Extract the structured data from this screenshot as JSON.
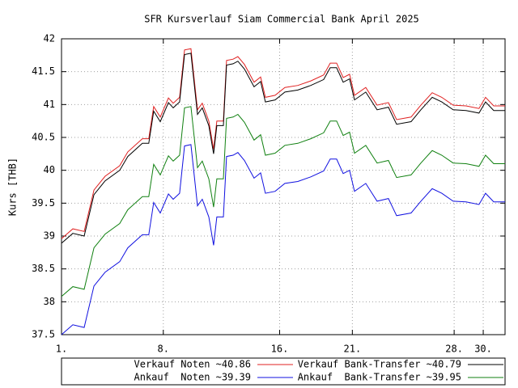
{
  "chart_data": {
    "type": "line",
    "title": "SFR Kursverlauf Siam Commercial Bank April 2025",
    "y_label": "Kurs [THB]",
    "xlim": [
      1,
      31.5
    ],
    "xticks": [
      {
        "value": 1,
        "label": "1."
      },
      {
        "value": 8,
        "label": "8."
      },
      {
        "value": 16,
        "label": "16."
      },
      {
        "value": 21,
        "label": "21."
      },
      {
        "value": 28,
        "label": "28."
      },
      {
        "value": 30,
        "label": "30."
      }
    ],
    "ylim": [
      37.5,
      42
    ],
    "yticks": [
      37.5,
      38,
      38.5,
      39,
      39.5,
      40,
      40.5,
      41,
      41.5,
      42
    ],
    "grid": true,
    "legend": "bottom",
    "x": [
      1,
      1.78,
      2.56,
      3.23,
      4.0,
      5.0,
      5.56,
      6.56,
      7.0,
      7.34,
      7.79,
      8.35,
      8.68,
      9.12,
      9.46,
      9.9,
      10.35,
      10.68,
      11.13,
      11.46,
      11.68,
      12.13,
      12.35,
      12.8,
      13.13,
      13.58,
      14.24,
      14.69,
      15.02,
      15.69,
      16.36,
      17.25,
      18.14,
      19.03,
      19.48,
      19.92,
      20.37,
      20.81,
      21.15,
      21.92,
      22.7,
      23.48,
      24.04,
      25.04,
      25.71,
      26.49,
      27.15,
      27.93,
      28.82,
      29.71,
      30.16,
      30.72,
      31.5
    ],
    "series": [
      {
        "name": "Verkauf Noten ~40.86",
        "color": "#e02020",
        "values": [
          38.96,
          39.11,
          39.07,
          39.7,
          39.91,
          40.07,
          40.28,
          40.48,
          40.48,
          40.97,
          40.81,
          41.1,
          41.02,
          41.11,
          41.83,
          41.85,
          40.92,
          41.02,
          40.75,
          40.32,
          40.75,
          40.75,
          41.67,
          41.69,
          41.73,
          41.61,
          41.34,
          41.42,
          41.11,
          41.14,
          41.26,
          41.29,
          41.36,
          41.45,
          41.63,
          41.63,
          41.41,
          41.46,
          41.14,
          41.26,
          40.99,
          41.03,
          40.77,
          40.81,
          40.99,
          41.18,
          41.11,
          40.99,
          40.98,
          40.94,
          41.11,
          40.98,
          40.98
        ]
      },
      {
        "name": "Verkauf Bank-Transfer ~40.79",
        "color": "#000000",
        "values": [
          38.89,
          39.04,
          39.0,
          39.63,
          39.84,
          40.0,
          40.21,
          40.41,
          40.41,
          40.9,
          40.74,
          41.03,
          40.95,
          41.04,
          41.76,
          41.78,
          40.85,
          40.95,
          40.68,
          40.25,
          40.68,
          40.68,
          41.6,
          41.62,
          41.66,
          41.54,
          41.27,
          41.35,
          41.04,
          41.07,
          41.19,
          41.22,
          41.29,
          41.38,
          41.56,
          41.56,
          41.34,
          41.39,
          41.07,
          41.19,
          40.92,
          40.96,
          40.7,
          40.74,
          40.92,
          41.11,
          41.04,
          40.92,
          40.91,
          40.87,
          41.04,
          40.91,
          40.91
        ]
      },
      {
        "name": "Ankauf  Noten ~39.39",
        "color": "#1010e0",
        "values": [
          37.5,
          37.65,
          37.61,
          38.24,
          38.45,
          38.61,
          38.82,
          39.02,
          39.02,
          39.51,
          39.35,
          39.64,
          39.56,
          39.65,
          40.37,
          40.39,
          39.46,
          39.56,
          39.29,
          38.86,
          39.29,
          39.29,
          40.21,
          40.23,
          40.27,
          40.15,
          39.88,
          39.96,
          39.65,
          39.68,
          39.8,
          39.83,
          39.9,
          39.99,
          40.17,
          40.17,
          39.95,
          40.0,
          39.68,
          39.8,
          39.53,
          39.57,
          39.31,
          39.35,
          39.53,
          39.72,
          39.65,
          39.53,
          39.52,
          39.48,
          39.65,
          39.52,
          39.52
        ]
      },
      {
        "name": "Ankauf  Bank-Transfer ~39.95",
        "color": "#108010",
        "values": [
          38.08,
          38.23,
          38.19,
          38.82,
          39.03,
          39.19,
          39.4,
          39.6,
          39.6,
          40.09,
          39.93,
          40.22,
          40.14,
          40.23,
          40.95,
          40.97,
          40.04,
          40.14,
          39.87,
          39.44,
          39.87,
          39.87,
          40.79,
          40.81,
          40.85,
          40.73,
          40.46,
          40.54,
          40.23,
          40.26,
          40.38,
          40.41,
          40.48,
          40.57,
          40.75,
          40.75,
          40.53,
          40.58,
          40.26,
          40.38,
          40.11,
          40.15,
          39.89,
          39.93,
          40.11,
          40.3,
          40.23,
          40.11,
          40.1,
          40.06,
          40.23,
          40.1,
          40.1
        ]
      }
    ]
  }
}
